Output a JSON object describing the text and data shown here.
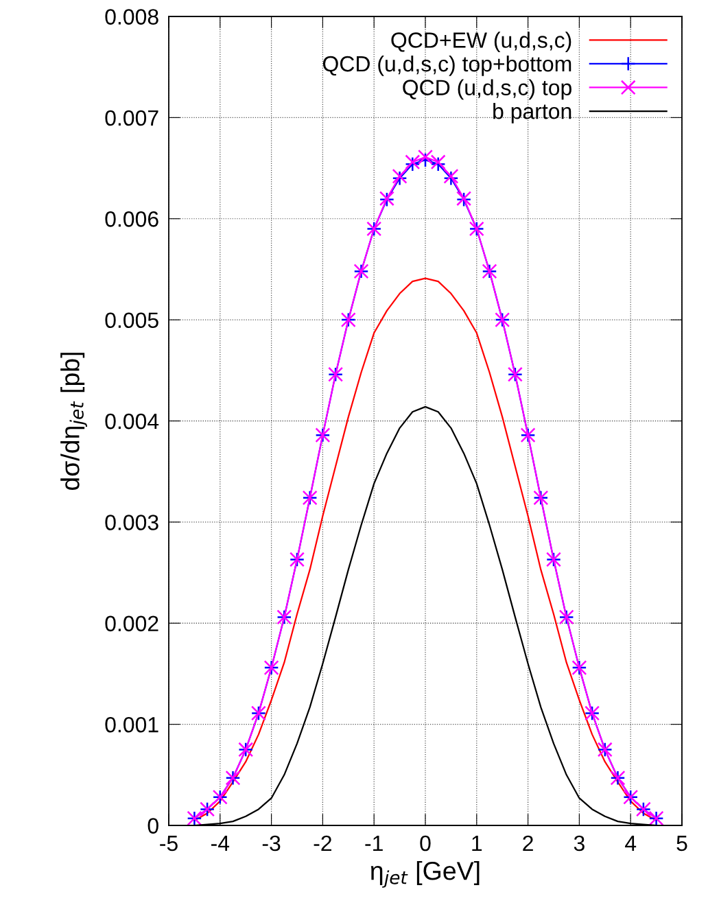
{
  "chart_data": {
    "type": "line",
    "xlabel": "η$_{jet}$ [GeV]",
    "ylabel": "dσ/dη$_{jet}$ [pb]",
    "xlim": [
      -5,
      5
    ],
    "xticks": [
      -5,
      -4,
      -3,
      -2,
      -1,
      0,
      1,
      2,
      3,
      4,
      5
    ],
    "ylim": [
      0,
      0.008
    ],
    "yticks": [
      0,
      0.001,
      0.002,
      0.003,
      0.004,
      0.005,
      0.006,
      0.007,
      0.008
    ],
    "grid": true,
    "legend": "top right",
    "x": [
      -4.5,
      -4.25,
      -4,
      -3.75,
      -3.5,
      -3.25,
      -3,
      -2.75,
      -2.5,
      -2.25,
      -2,
      -1.75,
      -1.5,
      -1.25,
      -1,
      -0.75,
      -0.5,
      -0.25,
      0,
      0.25,
      0.5,
      0.75,
      1,
      1.25,
      1.5,
      1.75,
      2,
      2.25,
      2.5,
      2.75,
      3,
      3.25,
      3.5,
      3.75,
      4,
      4.25,
      4.5
    ],
    "series": [
      {
        "name": "QCD+EW (u,d,s,c)",
        "color": "#ff0000",
        "marker": "none",
        "values": [
          5e-05,
          0.00012,
          0.00024,
          0.00043,
          0.00063,
          0.0009,
          0.00124,
          0.00161,
          0.00209,
          0.00253,
          0.00306,
          0.00355,
          0.00404,
          0.00448,
          0.00487,
          0.00509,
          0.00526,
          0.00538,
          0.00541,
          0.00538,
          0.00526,
          0.00509,
          0.00487,
          0.00448,
          0.00404,
          0.00355,
          0.00306,
          0.00253,
          0.00209,
          0.00161,
          0.00124,
          0.0009,
          0.00063,
          0.00043,
          0.00024,
          0.00012,
          5e-05
        ]
      },
      {
        "name": "QCD (u,d,s,c) top+bottom",
        "color": "#0000ff",
        "marker": "plus",
        "values": [
          7e-05,
          0.00016,
          0.00028,
          0.00047,
          0.00075,
          0.00111,
          0.00156,
          0.00206,
          0.00263,
          0.00324,
          0.00386,
          0.00446,
          0.005,
          0.00548,
          0.0059,
          0.00619,
          0.0064,
          0.00654,
          0.00658,
          0.00654,
          0.0064,
          0.00619,
          0.0059,
          0.00548,
          0.005,
          0.00446,
          0.00386,
          0.00324,
          0.00263,
          0.00206,
          0.00156,
          0.00111,
          0.00075,
          0.00047,
          0.00028,
          0.00016,
          7e-05
        ]
      },
      {
        "name": "QCD (u,d,s,c) top",
        "color": "#ff00ff",
        "marker": "cross",
        "values": [
          7e-05,
          0.00016,
          0.00028,
          0.00047,
          0.00075,
          0.00111,
          0.00156,
          0.00206,
          0.00263,
          0.00324,
          0.00386,
          0.00446,
          0.005,
          0.00548,
          0.0059,
          0.0062,
          0.00642,
          0.00656,
          0.00661,
          0.00656,
          0.00642,
          0.0062,
          0.0059,
          0.00548,
          0.005,
          0.00446,
          0.00386,
          0.00324,
          0.00263,
          0.00206,
          0.00156,
          0.00111,
          0.00075,
          0.00047,
          0.00028,
          0.00016,
          7e-05
        ]
      },
      {
        "name": "b parton",
        "color": "#000000",
        "marker": "none",
        "values": [
          0,
          1e-05,
          2e-05,
          4e-05,
          9e-05,
          0.00016,
          0.00027,
          0.0005,
          0.00081,
          0.00117,
          0.0016,
          0.00206,
          0.00253,
          0.00297,
          0.00338,
          0.00368,
          0.00393,
          0.00409,
          0.00414,
          0.00409,
          0.00393,
          0.00368,
          0.00338,
          0.00297,
          0.00253,
          0.00206,
          0.0016,
          0.00117,
          0.00081,
          0.0005,
          0.00027,
          0.00016,
          9e-05,
          4e-05,
          2e-05,
          1e-05,
          0
        ]
      }
    ]
  }
}
